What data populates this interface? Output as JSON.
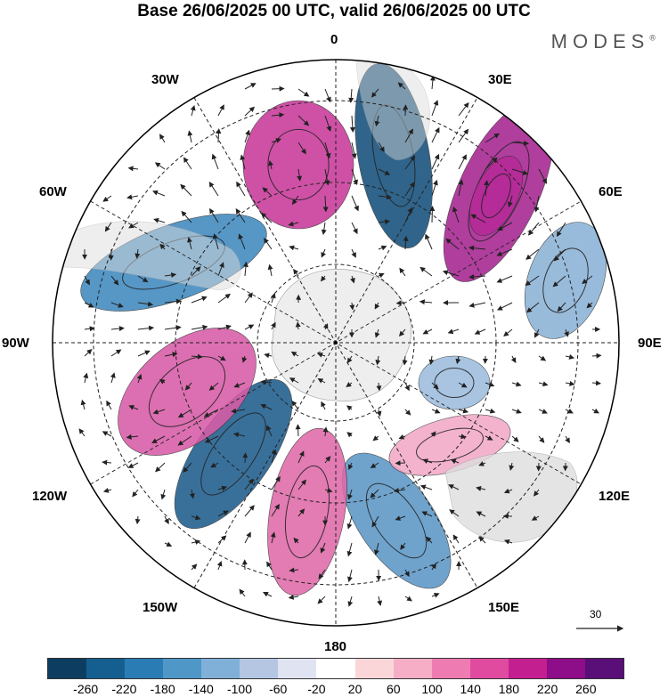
{
  "title": "Base 26/06/2025 00 UTC, valid 26/06/2025 00 UTC",
  "brand": "MODES",
  "brand_mark": "®",
  "longitude_labels": {
    "top": "0",
    "bottom": "180",
    "left": "90W",
    "right": "90E",
    "nw1": "30W",
    "nw2": "60W",
    "ne1": "30E",
    "ne2": "60E",
    "sw1": "120W",
    "sw2": "150W",
    "se1": "120E",
    "se2": "150E"
  },
  "reference_vector": {
    "label": "30"
  },
  "colorbar": {
    "ticks": [
      "-260",
      "-220",
      "-180",
      "-140",
      "-100",
      "-60",
      "-20",
      "20",
      "60",
      "100",
      "140",
      "180",
      "220",
      "260"
    ],
    "colors": [
      "#0d3d61",
      "#145f8f",
      "#2a7db4",
      "#4f97c7",
      "#80b0d8",
      "#b5c6e3",
      "#e0e3f2",
      "#ffffff",
      "#fad6d8",
      "#f6aec6",
      "#ef7bb3",
      "#e04a9f",
      "#c41f91",
      "#8e0d88",
      "#5a0e78"
    ]
  },
  "features": [
    {
      "value": -230,
      "color": "#144f7a"
    },
    {
      "value": 180,
      "color": "#c83a9a"
    },
    {
      "value": -160,
      "color": "#3f89bf"
    },
    {
      "value": 210,
      "color": "#a62490"
    },
    {
      "value": -210,
      "color": "#1e5d8c"
    },
    {
      "value": 150,
      "color": "#d85ca7"
    },
    {
      "value": -130,
      "color": "#5c97c6"
    },
    {
      "value": 140,
      "color": "#e06aa9"
    },
    {
      "value": 200,
      "color": "#b52a98"
    },
    {
      "value": -100,
      "color": "#8bb2d6"
    },
    {
      "value": 100,
      "color": "#f2a9c7"
    },
    {
      "value": -90,
      "color": "#9dbcdd"
    }
  ]
}
